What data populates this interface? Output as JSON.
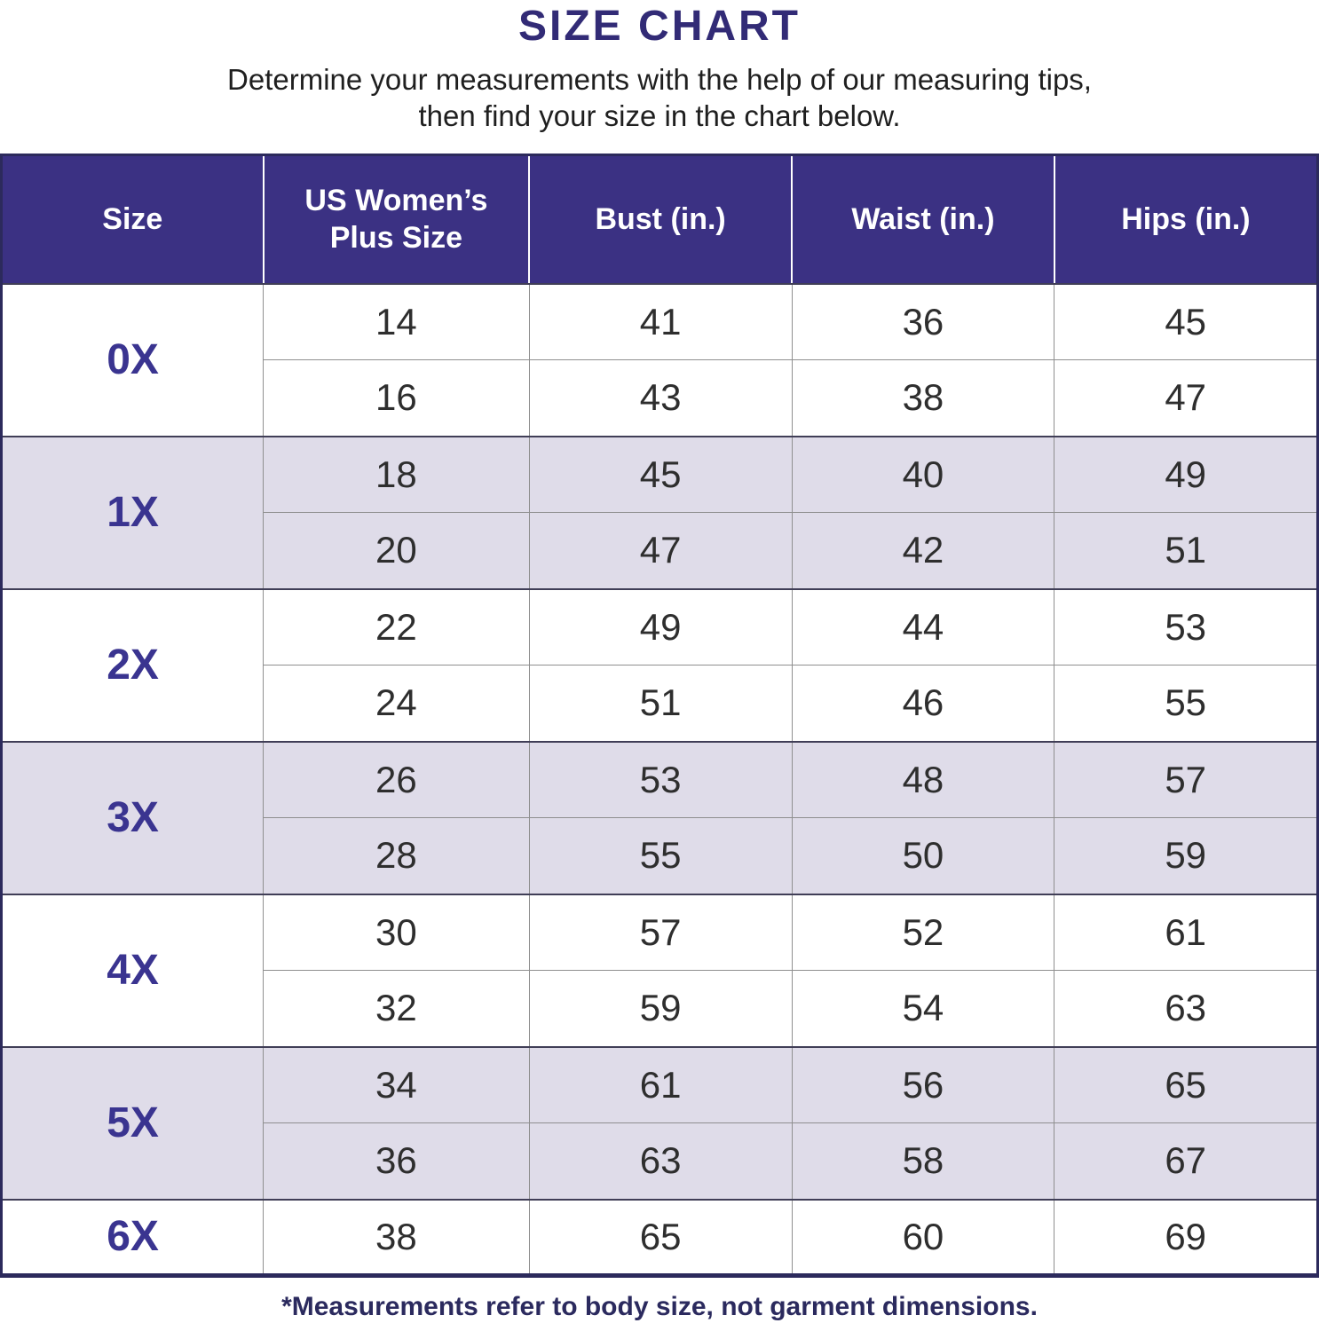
{
  "title": "SIZE CHART",
  "subtitle_line1": "Determine your measurements with the help of our measuring tips,",
  "subtitle_line2": "then find your size in the chart below.",
  "footnote": "*Measurements refer to body size, not garment dimensions.",
  "colors": {
    "header_bg": "#3b3183",
    "title": "#322b76",
    "size_label": "#3a3490",
    "shaded_row": "#dfdce9",
    "outer_border": "#2c2a5c"
  },
  "chart_data": {
    "type": "table",
    "title": "SIZE CHART",
    "headers": [
      "Size",
      "US Women’s Plus Size",
      "Bust (in.)",
      "Waist (in.)",
      "Hips (in.)"
    ],
    "groups": [
      {
        "size": "0X",
        "shaded": false,
        "rows": [
          [
            "14",
            "41",
            "36",
            "45"
          ],
          [
            "16",
            "43",
            "38",
            "47"
          ]
        ]
      },
      {
        "size": "1X",
        "shaded": true,
        "rows": [
          [
            "18",
            "45",
            "40",
            "49"
          ],
          [
            "20",
            "47",
            "42",
            "51"
          ]
        ]
      },
      {
        "size": "2X",
        "shaded": false,
        "rows": [
          [
            "22",
            "49",
            "44",
            "53"
          ],
          [
            "24",
            "51",
            "46",
            "55"
          ]
        ]
      },
      {
        "size": "3X",
        "shaded": true,
        "rows": [
          [
            "26",
            "53",
            "48",
            "57"
          ],
          [
            "28",
            "55",
            "50",
            "59"
          ]
        ]
      },
      {
        "size": "4X",
        "shaded": false,
        "rows": [
          [
            "30",
            "57",
            "52",
            "61"
          ],
          [
            "32",
            "59",
            "54",
            "63"
          ]
        ]
      },
      {
        "size": "5X",
        "shaded": true,
        "rows": [
          [
            "34",
            "61",
            "56",
            "65"
          ],
          [
            "36",
            "63",
            "58",
            "67"
          ]
        ]
      },
      {
        "size": "6X",
        "shaded": false,
        "rows": [
          [
            "38",
            "65",
            "60",
            "69"
          ]
        ]
      }
    ],
    "units": "inches",
    "footnote": "*Measurements refer to body size, not garment dimensions."
  }
}
